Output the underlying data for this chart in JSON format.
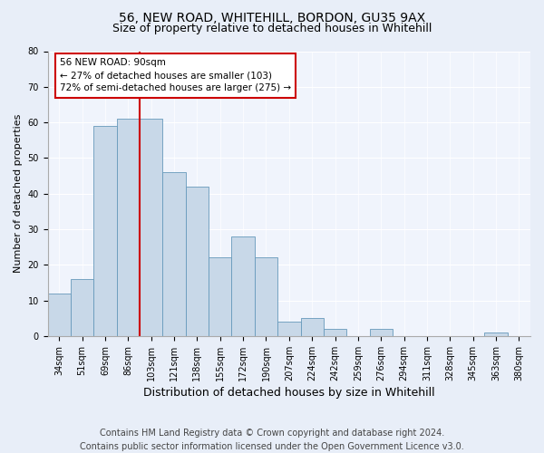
{
  "title1": "56, NEW ROAD, WHITEHILL, BORDON, GU35 9AX",
  "title2": "Size of property relative to detached houses in Whitehill",
  "xlabel": "Distribution of detached houses by size in Whitehill",
  "ylabel": "Number of detached properties",
  "categories": [
    "34sqm",
    "51sqm",
    "69sqm",
    "86sqm",
    "103sqm",
    "121sqm",
    "138sqm",
    "155sqm",
    "172sqm",
    "190sqm",
    "207sqm",
    "224sqm",
    "242sqm",
    "259sqm",
    "276sqm",
    "294sqm",
    "311sqm",
    "328sqm",
    "345sqm",
    "363sqm",
    "380sqm"
  ],
  "values": [
    12,
    16,
    59,
    61,
    61,
    46,
    42,
    22,
    28,
    22,
    4,
    5,
    2,
    0,
    2,
    0,
    0,
    0,
    0,
    1,
    0
  ],
  "bar_color": "#c8d8e8",
  "bar_edge_color": "#6699bb",
  "vline_bin": 4,
  "vline_color": "#cc0000",
  "annotation_text": "56 NEW ROAD: 90sqm\n← 27% of detached houses are smaller (103)\n72% of semi-detached houses are larger (275) →",
  "annotation_box_color": "#ffffff",
  "annotation_box_edge": "#cc0000",
  "ylim": [
    0,
    80
  ],
  "yticks": [
    0,
    10,
    20,
    30,
    40,
    50,
    60,
    70,
    80
  ],
  "footer": "Contains HM Land Registry data © Crown copyright and database right 2024.\nContains public sector information licensed under the Open Government Licence v3.0.",
  "bg_color": "#e8eef8",
  "plot_bg_color": "#f0f4fc",
  "title1_fontsize": 10,
  "title2_fontsize": 9,
  "xlabel_fontsize": 9,
  "ylabel_fontsize": 8,
  "footer_fontsize": 7,
  "tick_fontsize": 7,
  "annot_fontsize": 7.5
}
